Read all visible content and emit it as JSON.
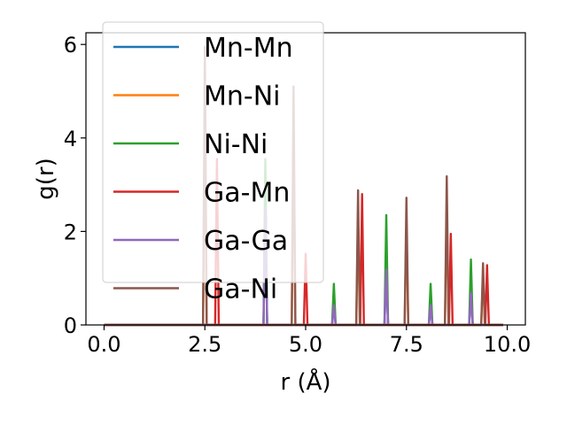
{
  "chart_data": {
    "type": "line",
    "xlabel": "r (Å)",
    "ylabel": "g(r)",
    "xlim": [
      -0.45,
      10.45
    ],
    "ylim": [
      0,
      6.25
    ],
    "xticks": [
      0.0,
      2.5,
      5.0,
      7.5,
      10.0
    ],
    "xtick_labels": [
      "0.0",
      "2.5",
      "5.0",
      "7.5",
      "10.0"
    ],
    "yticks": [
      0,
      2,
      4,
      6
    ],
    "ytick_labels": [
      "0",
      "2",
      "4",
      "6"
    ],
    "grid": false,
    "legend_position": "upper-left",
    "peak_halfwidth": 0.045,
    "r_range": [
      0.0,
      9.9
    ],
    "series": [
      {
        "name": "Mn-Mn",
        "color": "#1f77b4",
        "peaks": [
          [
            4.0,
            3.0
          ],
          [
            5.7,
            0.4
          ],
          [
            7.0,
            1.15
          ],
          [
            8.1,
            0.4
          ],
          [
            9.1,
            0.65
          ]
        ]
      },
      {
        "name": "Mn-Ni",
        "color": "#ff7f0e",
        "peaks": [
          [
            2.5,
            4.9
          ],
          [
            4.7,
            4.1
          ],
          [
            6.3,
            2.3
          ],
          [
            7.5,
            2.2
          ],
          [
            8.5,
            2.6
          ],
          [
            9.4,
            1.1
          ]
        ]
      },
      {
        "name": "Ni-Ni",
        "color": "#2ca02c",
        "peaks": [
          [
            4.0,
            3.55
          ],
          [
            5.7,
            0.88
          ],
          [
            7.0,
            2.35
          ],
          [
            8.1,
            0.88
          ],
          [
            9.1,
            1.4
          ]
        ]
      },
      {
        "name": "Ga-Mn",
        "color": "#d62728",
        "peaks": [
          [
            2.8,
            3.55
          ],
          [
            5.0,
            1.52
          ],
          [
            6.4,
            2.8
          ],
          [
            8.6,
            1.95
          ],
          [
            9.5,
            1.28
          ]
        ]
      },
      {
        "name": "Ga-Ga",
        "color": "#9467bd",
        "peaks": [
          [
            4.0,
            2.5
          ],
          [
            5.7,
            0.42
          ],
          [
            7.0,
            1.18
          ],
          [
            8.1,
            0.42
          ],
          [
            9.1,
            0.68
          ]
        ]
      },
      {
        "name": "Ga-Ni",
        "color": "#8c564b",
        "peaks": [
          [
            2.5,
            5.95
          ],
          [
            4.7,
            5.1
          ],
          [
            6.3,
            2.88
          ],
          [
            7.5,
            2.72
          ],
          [
            8.5,
            3.18
          ],
          [
            9.4,
            1.32
          ]
        ]
      }
    ]
  }
}
